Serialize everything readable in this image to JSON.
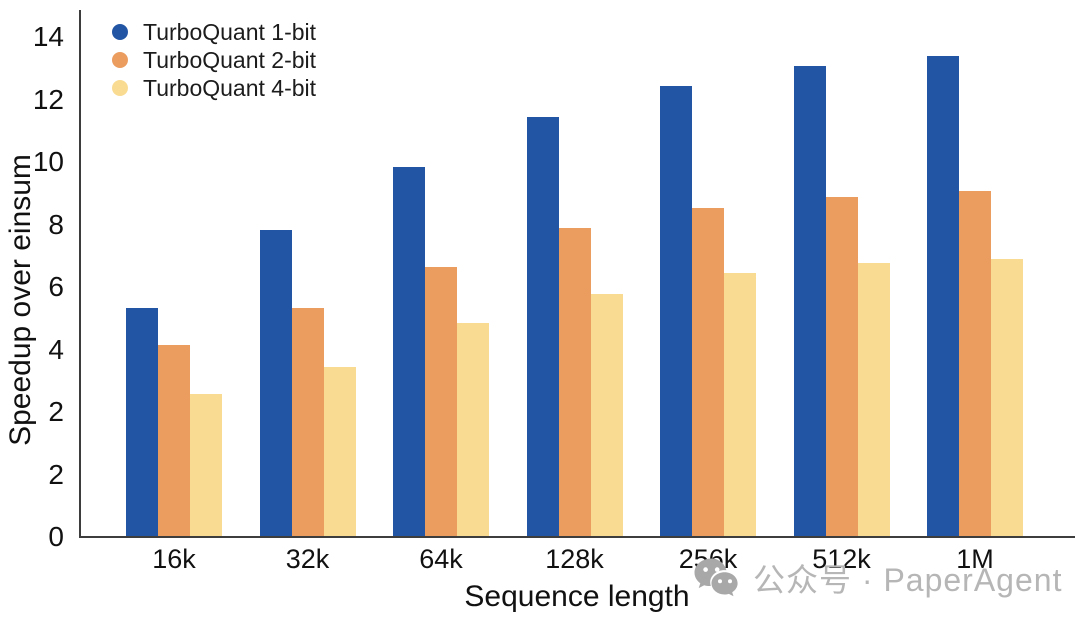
{
  "figure": {
    "background": "#ffffff",
    "axis_color": "#3d3d3d",
    "text_color": "#111111"
  },
  "chart_data": {
    "type": "bar",
    "title": "",
    "xlabel": "Sequence length",
    "ylabel": "Speedup over einsum",
    "categories": [
      "16k",
      "32k",
      "64k",
      "128k",
      "256k",
      "512k",
      "1M"
    ],
    "series": [
      {
        "name": "TurboQuant 1-bit",
        "color": "#2256A4",
        "values": [
          5.3,
          7.8,
          9.8,
          11.4,
          12.4,
          13.05,
          13.35
        ]
      },
      {
        "name": "TurboQuant 2-bit",
        "color": "#EB9C5F",
        "values": [
          4.1,
          5.3,
          6.6,
          7.85,
          8.5,
          8.85,
          9.05
        ]
      },
      {
        "name": "TurboQuant 4-bit",
        "color": "#F9DB91",
        "values": [
          2.55,
          3.4,
          4.8,
          5.75,
          6.4,
          6.75,
          6.85
        ]
      }
    ],
    "ylim": [
      0,
      14
    ],
    "yticks_bottom_to_top": [
      "0",
      "2",
      "2",
      "4",
      "6",
      "8",
      "10",
      "12",
      "14"
    ],
    "grid": false,
    "legend_position": "upper-left",
    "note": "The y-axis shows a duplicated '2' tick label (vertically stretched screenshot band between the two '2' ticks); bar pixel heights follow that stretched scale."
  },
  "watermark": {
    "text": "公众号 · PaperAgent",
    "color": "#b6b6b6",
    "icon": "wechat-icon",
    "icon_color": "#a8a8a8"
  }
}
